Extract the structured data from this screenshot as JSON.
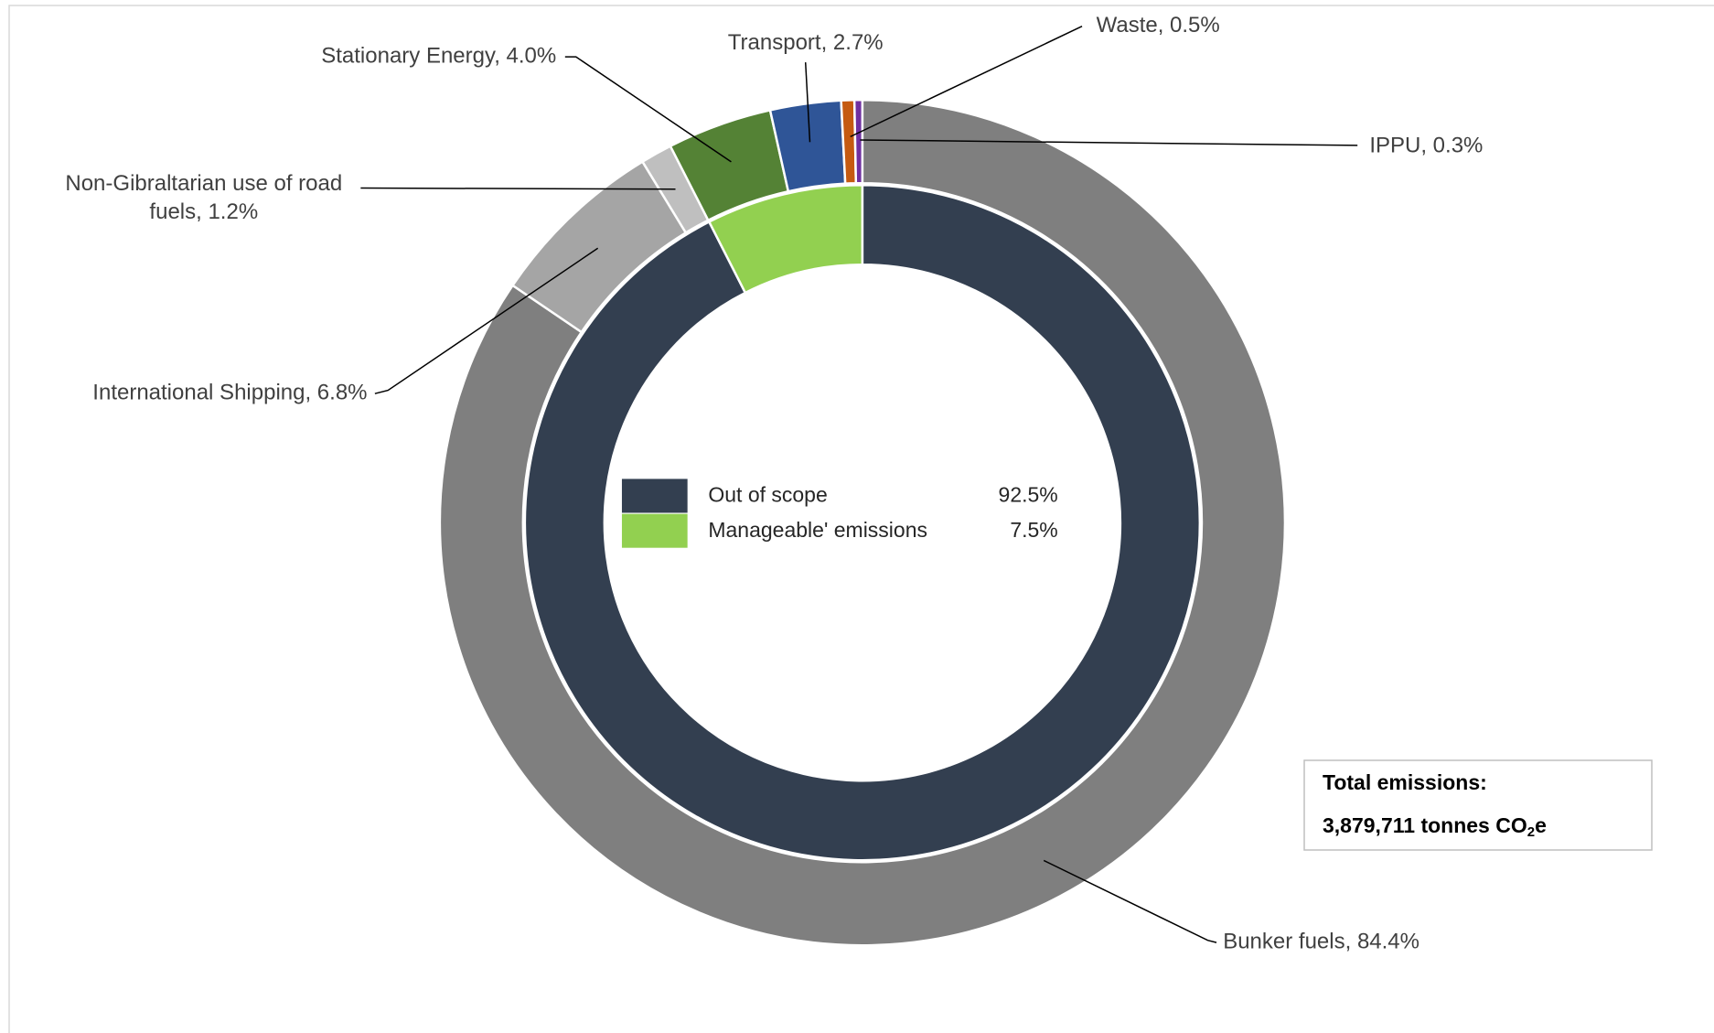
{
  "chart_data": {
    "type": "nested-donut",
    "outer": {
      "labels": [
        "Bunker fuels, 84.4%",
        "International Shipping, 6.8%",
        "Non-Gibraltarian use of road fuels, 1.2%",
        "Stationary Energy, 4.0%",
        "Transport, 2.7%",
        "Waste, 0.5%",
        "IPPU, 0.3%"
      ],
      "values": [
        84.4,
        6.8,
        1.2,
        4.0,
        2.7,
        0.5,
        0.3
      ],
      "colors": [
        "#7f7f7f",
        "#a5a5a5",
        "#bfbfbf",
        "#548235",
        "#2f5597",
        "#c55a11",
        "#7030a0"
      ]
    },
    "inner": {
      "categories": [
        "Out of scope",
        "Manageable' emissions"
      ],
      "values": [
        92.5,
        7.5
      ],
      "value_labels": [
        "92.5%",
        "7.5%"
      ],
      "colors": [
        "#333f50",
        "#92d050"
      ]
    },
    "annotation": {
      "title": "Total emissions:",
      "text": "3,879,711 tonnes CO",
      "subscript": "2",
      "suffix": "e"
    }
  }
}
